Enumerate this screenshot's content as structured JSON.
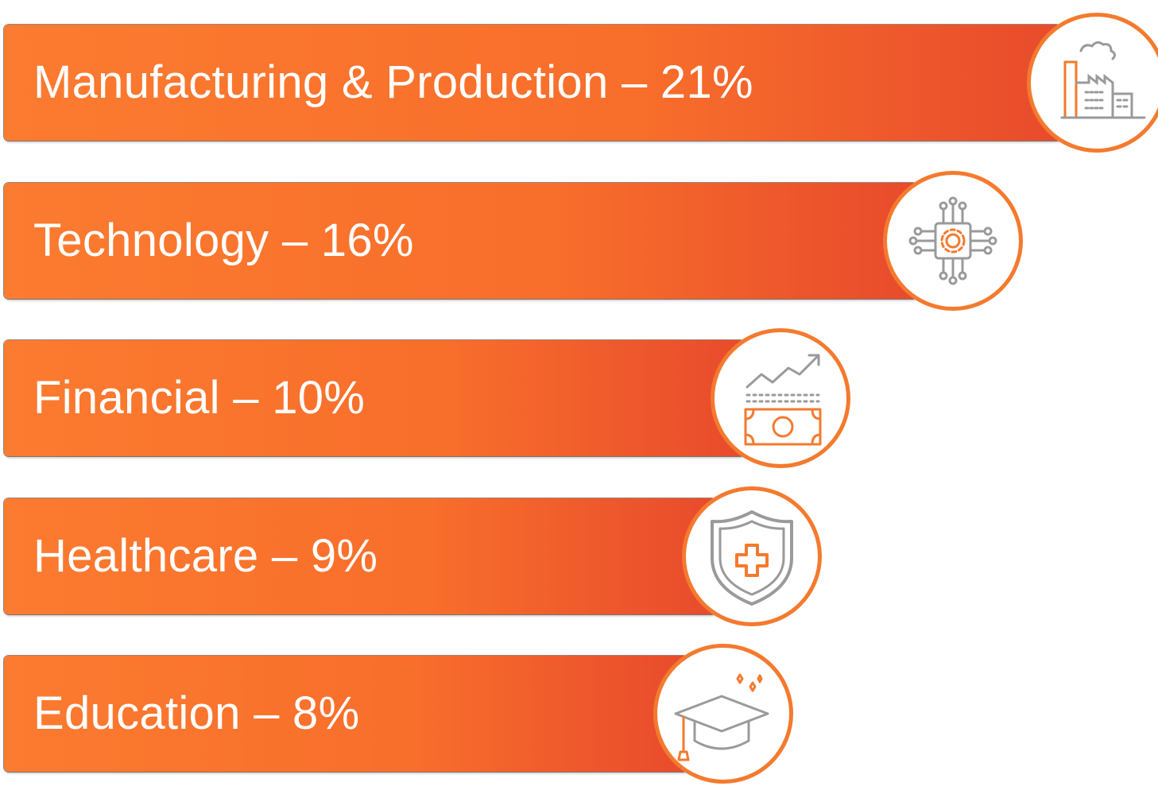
{
  "chart_data": {
    "type": "bar",
    "orientation": "horizontal",
    "categories": [
      "Manufacturing & Production",
      "Technology",
      "Financial",
      "Healthcare",
      "Education"
    ],
    "values": [
      21,
      16,
      10,
      9,
      8
    ],
    "labels": [
      "Manufacturing & Production – 21%",
      "Technology – 16%",
      "Financial – 10%",
      "Healthcare – 9%",
      "Education – 8%"
    ],
    "unit": "%",
    "icons": [
      "factory-icon",
      "circuit-chip-icon",
      "money-growth-icon",
      "shield-cross-icon",
      "graduation-cap-icon"
    ],
    "colors": {
      "bar_start": "#fb7b30",
      "bar_end": "#e84b2c",
      "icon_accent": "#f47a2e",
      "icon_gray": "#9a9a9a"
    },
    "grid": false,
    "legend": "none"
  }
}
